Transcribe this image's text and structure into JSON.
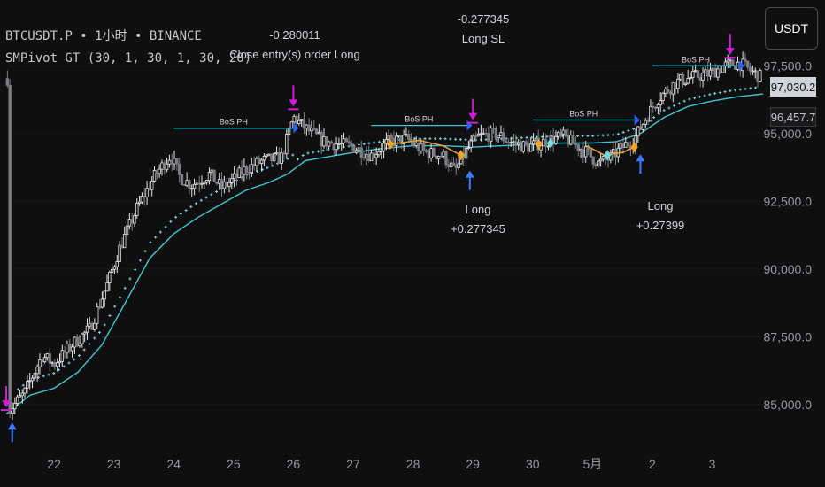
{
  "legend": {
    "symbol_line": "BTCUSDT.P • 1小时 • BINANCE",
    "indicator_line": "SMPivot GT (30, 1, 30, 1, 30, 20)"
  },
  "currency_button": "USDT",
  "price_tags": {
    "last_price": "97,030.2",
    "line_price": "96,457.7"
  },
  "annotations": [
    {
      "lines": [
        "-0.280011",
        "Close entry(s) order Long"
      ],
      "kind": "close"
    },
    {
      "lines": [
        "-0.277345",
        "Long SL"
      ],
      "kind": "stop"
    },
    {
      "lines": [
        "Long",
        "+0.277345"
      ],
      "kind": "long"
    },
    {
      "lines": [
        "Long",
        "+0.27399"
      ],
      "kind": "long"
    }
  ],
  "bos_labels": [
    "BoS PH",
    "BoS PH",
    "BoS PH",
    "BoS PH"
  ],
  "chart_data": {
    "type": "candlestick",
    "y_axis": {
      "ticks": [
        85000,
        87500,
        90000,
        92500,
        95000,
        97500
      ],
      "tick_labels": [
        "85,000.0",
        "87,500.0",
        "90,000.0",
        "92,500.0",
        "95,000.0",
        "97,500.0"
      ],
      "range": [
        83200,
        99600
      ]
    },
    "x_axis": {
      "ticks": [
        {
          "label": "22",
          "day": 1
        },
        {
          "label": "23",
          "day": 2
        },
        {
          "label": "24",
          "day": 3
        },
        {
          "label": "25",
          "day": 4
        },
        {
          "label": "26",
          "day": 5
        },
        {
          "label": "27",
          "day": 6
        },
        {
          "label": "28",
          "day": 7
        },
        {
          "label": "29",
          "day": 8
        },
        {
          "label": "30",
          "day": 9
        },
        {
          "label": "5月",
          "day": 10
        },
        {
          "label": "2",
          "day": 11
        },
        {
          "label": "3",
          "day": 12
        }
      ],
      "range": [
        0.2,
        12.85
      ]
    },
    "price_path": [
      [
        0.25,
        84800
      ],
      [
        0.5,
        85400
      ],
      [
        0.8,
        86800
      ],
      [
        1.0,
        86500
      ],
      [
        1.3,
        87200
      ],
      [
        1.6,
        87800
      ],
      [
        1.9,
        89500
      ],
      [
        2.1,
        90800
      ],
      [
        2.4,
        92300
      ],
      [
        2.7,
        93500
      ],
      [
        2.95,
        94200
      ],
      [
        3.1,
        93400
      ],
      [
        3.3,
        93100
      ],
      [
        3.6,
        93500
      ],
      [
        3.8,
        93000
      ],
      [
        4.0,
        93300
      ],
      [
        4.2,
        93700
      ],
      [
        4.5,
        94000
      ],
      [
        4.8,
        94100
      ],
      [
        5.0,
        95600
      ],
      [
        5.2,
        95200
      ],
      [
        5.5,
        94700
      ],
      [
        5.8,
        94600
      ],
      [
        6.0,
        94500
      ],
      [
        6.3,
        94200
      ],
      [
        6.6,
        94700
      ],
      [
        6.9,
        94800
      ],
      [
        7.2,
        94300
      ],
      [
        7.5,
        94200
      ],
      [
        7.7,
        93600
      ],
      [
        7.9,
        94400
      ],
      [
        8.1,
        94900
      ],
      [
        8.4,
        95000
      ],
      [
        8.6,
        94700
      ],
      [
        8.9,
        94500
      ],
      [
        9.2,
        94700
      ],
      [
        9.5,
        94900
      ],
      [
        9.7,
        94600
      ],
      [
        9.9,
        94300
      ],
      [
        10.1,
        93900
      ],
      [
        10.3,
        94100
      ],
      [
        10.5,
        94500
      ],
      [
        10.7,
        94800
      ],
      [
        10.9,
        95600
      ],
      [
        11.1,
        96300
      ],
      [
        11.4,
        96900
      ],
      [
        11.7,
        97100
      ],
      [
        11.95,
        97200
      ],
      [
        12.2,
        97500
      ],
      [
        12.45,
        97600
      ],
      [
        12.65,
        97300
      ],
      [
        12.85,
        97030
      ]
    ],
    "trail_line": [
      [
        0.2,
        84650
      ],
      [
        0.6,
        85350
      ],
      [
        1.0,
        85600
      ],
      [
        1.4,
        86200
      ],
      [
        1.8,
        87200
      ],
      [
        2.2,
        88800
      ],
      [
        2.6,
        90400
      ],
      [
        3.0,
        91300
      ],
      [
        3.4,
        91900
      ],
      [
        3.8,
        92400
      ],
      [
        4.2,
        92900
      ],
      [
        4.6,
        93200
      ],
      [
        4.9,
        93500
      ],
      [
        5.2,
        94000
      ],
      [
        5.6,
        94150
      ],
      [
        6.0,
        94300
      ],
      [
        6.5,
        94450
      ],
      [
        7.0,
        94550
      ],
      [
        7.5,
        94550
      ],
      [
        8.0,
        94500
      ],
      [
        8.5,
        94550
      ],
      [
        9.0,
        94600
      ],
      [
        9.5,
        94650
      ],
      [
        10.0,
        94650
      ],
      [
        10.4,
        94700
      ],
      [
        10.8,
        95000
      ],
      [
        11.2,
        95600
      ],
      [
        11.6,
        96000
      ],
      [
        12.0,
        96200
      ],
      [
        12.4,
        96350
      ],
      [
        12.85,
        96460
      ]
    ],
    "bos_levels": [
      {
        "start": 3.0,
        "end": 5.0,
        "price": 95200
      },
      {
        "start": 6.3,
        "end": 7.9,
        "price": 95300
      },
      {
        "start": 9.0,
        "end": 10.7,
        "price": 95500
      },
      {
        "start": 11.0,
        "end": 12.45,
        "price": 97500
      }
    ],
    "orange_segments": [
      [
        [
          6.6,
          94600
        ],
        [
          7.1,
          94750
        ],
        [
          7.5,
          94550
        ],
        [
          7.8,
          94200
        ]
      ],
      [
        [
          9.9,
          94550
        ],
        [
          10.2,
          94200
        ],
        [
          10.5,
          94300
        ],
        [
          10.7,
          94500
        ]
      ]
    ],
    "signals": [
      {
        "type": "long_entry",
        "day": 0.3,
        "price": 84400
      },
      {
        "type": "close",
        "day": 0.2,
        "price": 84700
      },
      {
        "type": "close",
        "day": 5.0,
        "price": 95800
      },
      {
        "type": "stop",
        "day": 8.0,
        "price": 95300
      },
      {
        "type": "long_entry",
        "day": 7.95,
        "price": 93700
      },
      {
        "type": "long_entry",
        "day": 10.8,
        "price": 94300
      },
      {
        "type": "close",
        "day": 12.3,
        "price": 97700
      }
    ],
    "last_price": 97030.2,
    "line_price": 96457.7
  }
}
